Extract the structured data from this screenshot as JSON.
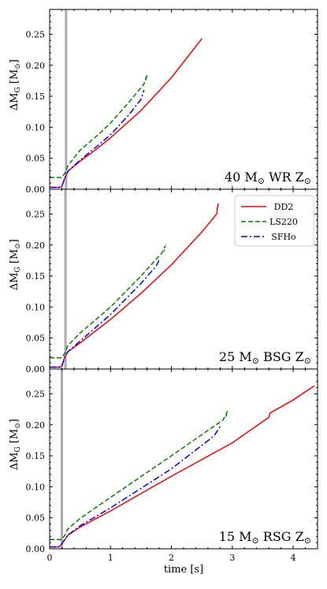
{
  "chart_data": {
    "type": "line",
    "xlabel": "time [s]",
    "ylabel": "ΔM",
    "ylabel_sub": "G",
    "ylabel_unit": "[M",
    "ylabel_unit_end": "]",
    "sun_symbol": "⊙",
    "xlim": [
      0,
      4.4
    ],
    "ylim": [
      0,
      0.29
    ],
    "x_ticks": [
      0,
      1,
      2,
      3,
      4
    ],
    "y_ticks": [
      0,
      0.05,
      0.1,
      0.15,
      0.2,
      0.25
    ],
    "y_tick_labels": [
      "0.00",
      "0.05",
      "0.10",
      "0.15",
      "0.20",
      "0.25"
    ],
    "x_tick_labels": [
      "0",
      "1",
      "2",
      "3",
      "4"
    ],
    "legend": {
      "placement": "top-right of middle panel",
      "entries": [
        {
          "name": "DD2",
          "color": "#ff0000",
          "style": "solid"
        },
        {
          "name": "LS220",
          "color": "#008000",
          "style": "dashed"
        },
        {
          "name": "SFHo",
          "color": "#0000ff",
          "style": "dash-dot"
        }
      ]
    },
    "panels": [
      {
        "label_prefix": "40 M",
        "label_suffix": " WR Z",
        "vline_x": 0.27,
        "series": [
          {
            "name": "DD2",
            "x": [
              0,
              0.17,
              0.2,
              0.25,
              0.3,
              0.5,
              0.8,
              1.0,
              1.5,
              2.0,
              2.5
            ],
            "y": [
              0.003,
              0.003,
              0.005,
              0.018,
              0.029,
              0.045,
              0.067,
              0.083,
              0.127,
              0.18,
              0.243
            ]
          },
          {
            "name": "LS220",
            "x": [
              0,
              0.2,
              0.25,
              0.3,
              0.5,
              0.8,
              1.0,
              1.3,
              1.55,
              1.6,
              1.58
            ],
            "y": [
              0.019,
              0.019,
              0.026,
              0.038,
              0.063,
              0.088,
              0.107,
              0.14,
              0.17,
              0.185,
              0.176
            ]
          },
          {
            "name": "SFHo",
            "x": [
              0,
              0.17,
              0.2,
              0.25,
              0.3,
              0.5,
              0.8,
              1.0,
              1.3,
              1.5,
              1.55
            ],
            "y": [
              0.003,
              0.003,
              0.005,
              0.018,
              0.029,
              0.047,
              0.071,
              0.088,
              0.12,
              0.145,
              0.16
            ]
          }
        ]
      },
      {
        "label_prefix": "25 M",
        "label_suffix": " BSG Z",
        "vline_x": 0.26,
        "series": [
          {
            "name": "DD2",
            "x": [
              0,
              0.17,
              0.2,
              0.25,
              0.3,
              0.5,
              1.0,
              1.5,
              2.0,
              2.5,
              2.75,
              2.75,
              2.77
            ],
            "y": [
              0.003,
              0.003,
              0.005,
              0.02,
              0.028,
              0.042,
              0.08,
              0.122,
              0.168,
              0.221,
              0.251,
              0.257,
              0.267
            ]
          },
          {
            "name": "LS220",
            "x": [
              0,
              0.2,
              0.25,
              0.3,
              0.5,
              1.0,
              1.5,
              1.85,
              1.9,
              1.88
            ],
            "y": [
              0.018,
              0.018,
              0.026,
              0.038,
              0.058,
              0.1,
              0.15,
              0.188,
              0.199,
              0.19
            ]
          },
          {
            "name": "SFHo",
            "x": [
              0,
              0.17,
              0.2,
              0.25,
              0.3,
              0.5,
              1.0,
              1.5,
              1.75,
              1.8
            ],
            "y": [
              0.003,
              0.003,
              0.005,
              0.02,
              0.028,
              0.045,
              0.088,
              0.138,
              0.166,
              0.176
            ]
          }
        ]
      },
      {
        "label_prefix": "15 M",
        "label_suffix": " RSG Z",
        "vline_x": 0.2,
        "series": [
          {
            "name": "DD2",
            "x": [
              0,
              0.15,
              0.2,
              0.3,
              0.5,
              1.0,
              2.0,
              3.0,
              3.6,
              3.62,
              4.0,
              4.35
            ],
            "y": [
              0.003,
              0.003,
              0.008,
              0.022,
              0.035,
              0.061,
              0.117,
              0.171,
              0.212,
              0.219,
              0.24,
              0.263
            ]
          },
          {
            "name": "LS220",
            "x": [
              0,
              0.2,
              0.25,
              0.3,
              0.5,
              1.0,
              2.0,
              2.85,
              2.92,
              2.9
            ],
            "y": [
              0.015,
              0.015,
              0.022,
              0.032,
              0.049,
              0.083,
              0.15,
              0.208,
              0.222,
              0.213
            ]
          },
          {
            "name": "SFHo",
            "x": [
              0,
              0.15,
              0.2,
              0.3,
              0.5,
              1.0,
              2.0,
              2.7,
              2.8
            ],
            "y": [
              0.003,
              0.003,
              0.008,
              0.022,
              0.037,
              0.066,
              0.129,
              0.182,
              0.197
            ]
          }
        ]
      }
    ]
  }
}
